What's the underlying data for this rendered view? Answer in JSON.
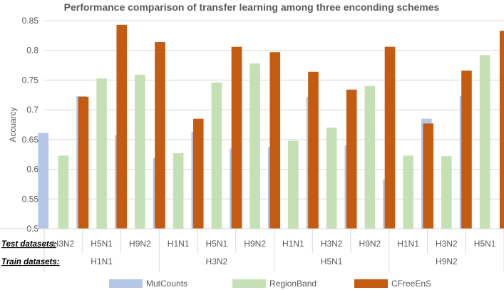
{
  "chart_data": {
    "type": "bar",
    "title": "Performance comparison of transfer learning among three enconding schemes",
    "ylabel": "Accuarcy",
    "ylim": [
      0.5,
      0.85
    ],
    "yticks": [
      "0.5",
      "0.55",
      "0.6",
      "0.65",
      "0.7",
      "0.75",
      "0.8",
      "0.85"
    ],
    "row_labels": {
      "test": "Test datasets:",
      "train": "Train datasets:"
    },
    "groups": [
      {
        "train": "H1N1",
        "tests": [
          "H3N2",
          "H5N1",
          "H9N2"
        ]
      },
      {
        "train": "H3N2",
        "tests": [
          "H1N1",
          "H5N1",
          "H9N2"
        ]
      },
      {
        "train": "H5N1",
        "tests": [
          "H1N1",
          "H3N2",
          "H9N2"
        ]
      },
      {
        "train": "H9N2",
        "tests": [
          "H1N1",
          "H3N2",
          "H5N1"
        ]
      }
    ],
    "series": [
      {
        "name": "MutCounts",
        "color": "#B4C7E7",
        "values": [
          0.661,
          0.723,
          0.657,
          0.619,
          0.663,
          0.635,
          0.637,
          0.722,
          0.64,
          0.583,
          0.685,
          0.723
        ]
      },
      {
        "name": "RegionBand",
        "color": "#C5E0B4",
        "values": [
          0.623,
          0.753,
          0.759,
          0.627,
          0.746,
          0.778,
          0.648,
          0.67,
          0.74,
          0.623,
          0.622,
          0.792
        ]
      },
      {
        "name": "CFreeEnS",
        "color": "#C55A11",
        "values": [
          0.722,
          0.843,
          0.814,
          0.685,
          0.806,
          0.797,
          0.764,
          0.734,
          0.806,
          0.677,
          0.766,
          0.833
        ]
      }
    ],
    "grid": true,
    "legend": "bottom"
  }
}
